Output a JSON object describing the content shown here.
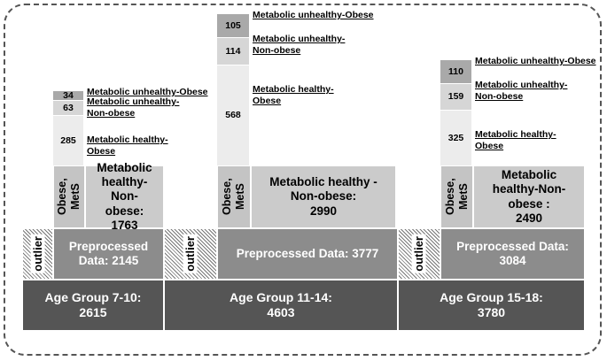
{
  "groups": [
    {
      "age_label": "Age Group 7-10:",
      "age_total": 2615,
      "outlier": "outlier",
      "preprocessed_label": "Preprocessed Data:",
      "preprocessed": 2145,
      "obese_mets": "Obese, MetS",
      "healthy_nonobese_label": "Metabolic healthy-Non-obese:",
      "healthy_nonobese": 1763,
      "segments": [
        {
          "count": 285,
          "label": "Metabolic healthy-Obese"
        },
        {
          "count": 63,
          "label": "Metabolic unhealthy-Non-obese"
        },
        {
          "count": 34,
          "label": "Metabolic unhealthy-Obese"
        }
      ]
    },
    {
      "age_label": "Age Group 11-14:",
      "age_total": 4603,
      "outlier": "outlier",
      "preprocessed_label": "Preprocessed Data:",
      "preprocessed": 3777,
      "obese_mets": "Obese, MetS",
      "healthy_nonobese_label": "Metabolic healthy -Non-obese:",
      "healthy_nonobese": 2990,
      "segments": [
        {
          "count": 568,
          "label": "Metabolic healthy-Obese"
        },
        {
          "count": 114,
          "label": "Metabolic unhealthy-Non-obese"
        },
        {
          "count": 105,
          "label": "Metabolic unhealthy-Obese"
        }
      ]
    },
    {
      "age_label": "Age Group 15-18:",
      "age_total": 3780,
      "outlier": "outlier",
      "preprocessed_label": "Preprocessed Data:",
      "preprocessed": 3084,
      "obese_mets": "Obese, MetS",
      "healthy_nonobese_label": "Metabolic healthy-Non-obese :",
      "healthy_nonobese": 2490,
      "segments": [
        {
          "count": 325,
          "label": "Metabolic healthy-Obese"
        },
        {
          "count": 159,
          "label": "Metabolic unhealthy-Non-obese"
        },
        {
          "count": 110,
          "label": "Metabolic unhealthy-Obese"
        }
      ]
    }
  ]
}
